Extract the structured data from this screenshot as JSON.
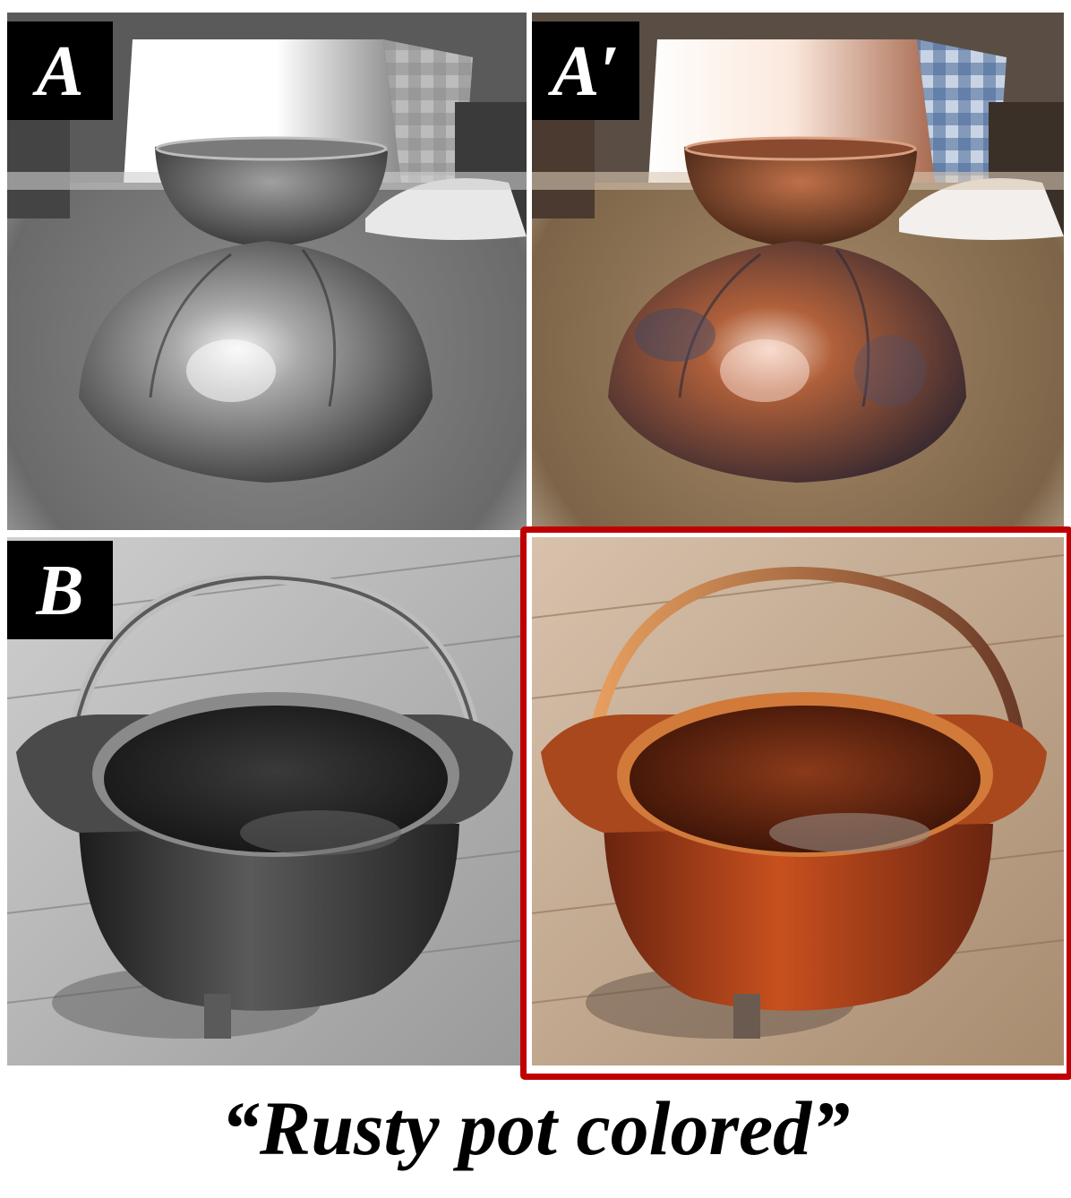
{
  "panels": {
    "a": {
      "label": "A"
    },
    "a_prime": {
      "label": "A′"
    },
    "b": {
      "label": "B"
    }
  },
  "caption": "“Rusty pot colored”",
  "colors": {
    "highlight_frame": "#c00000",
    "label_background": "#000000",
    "label_text": "#ffffff"
  }
}
